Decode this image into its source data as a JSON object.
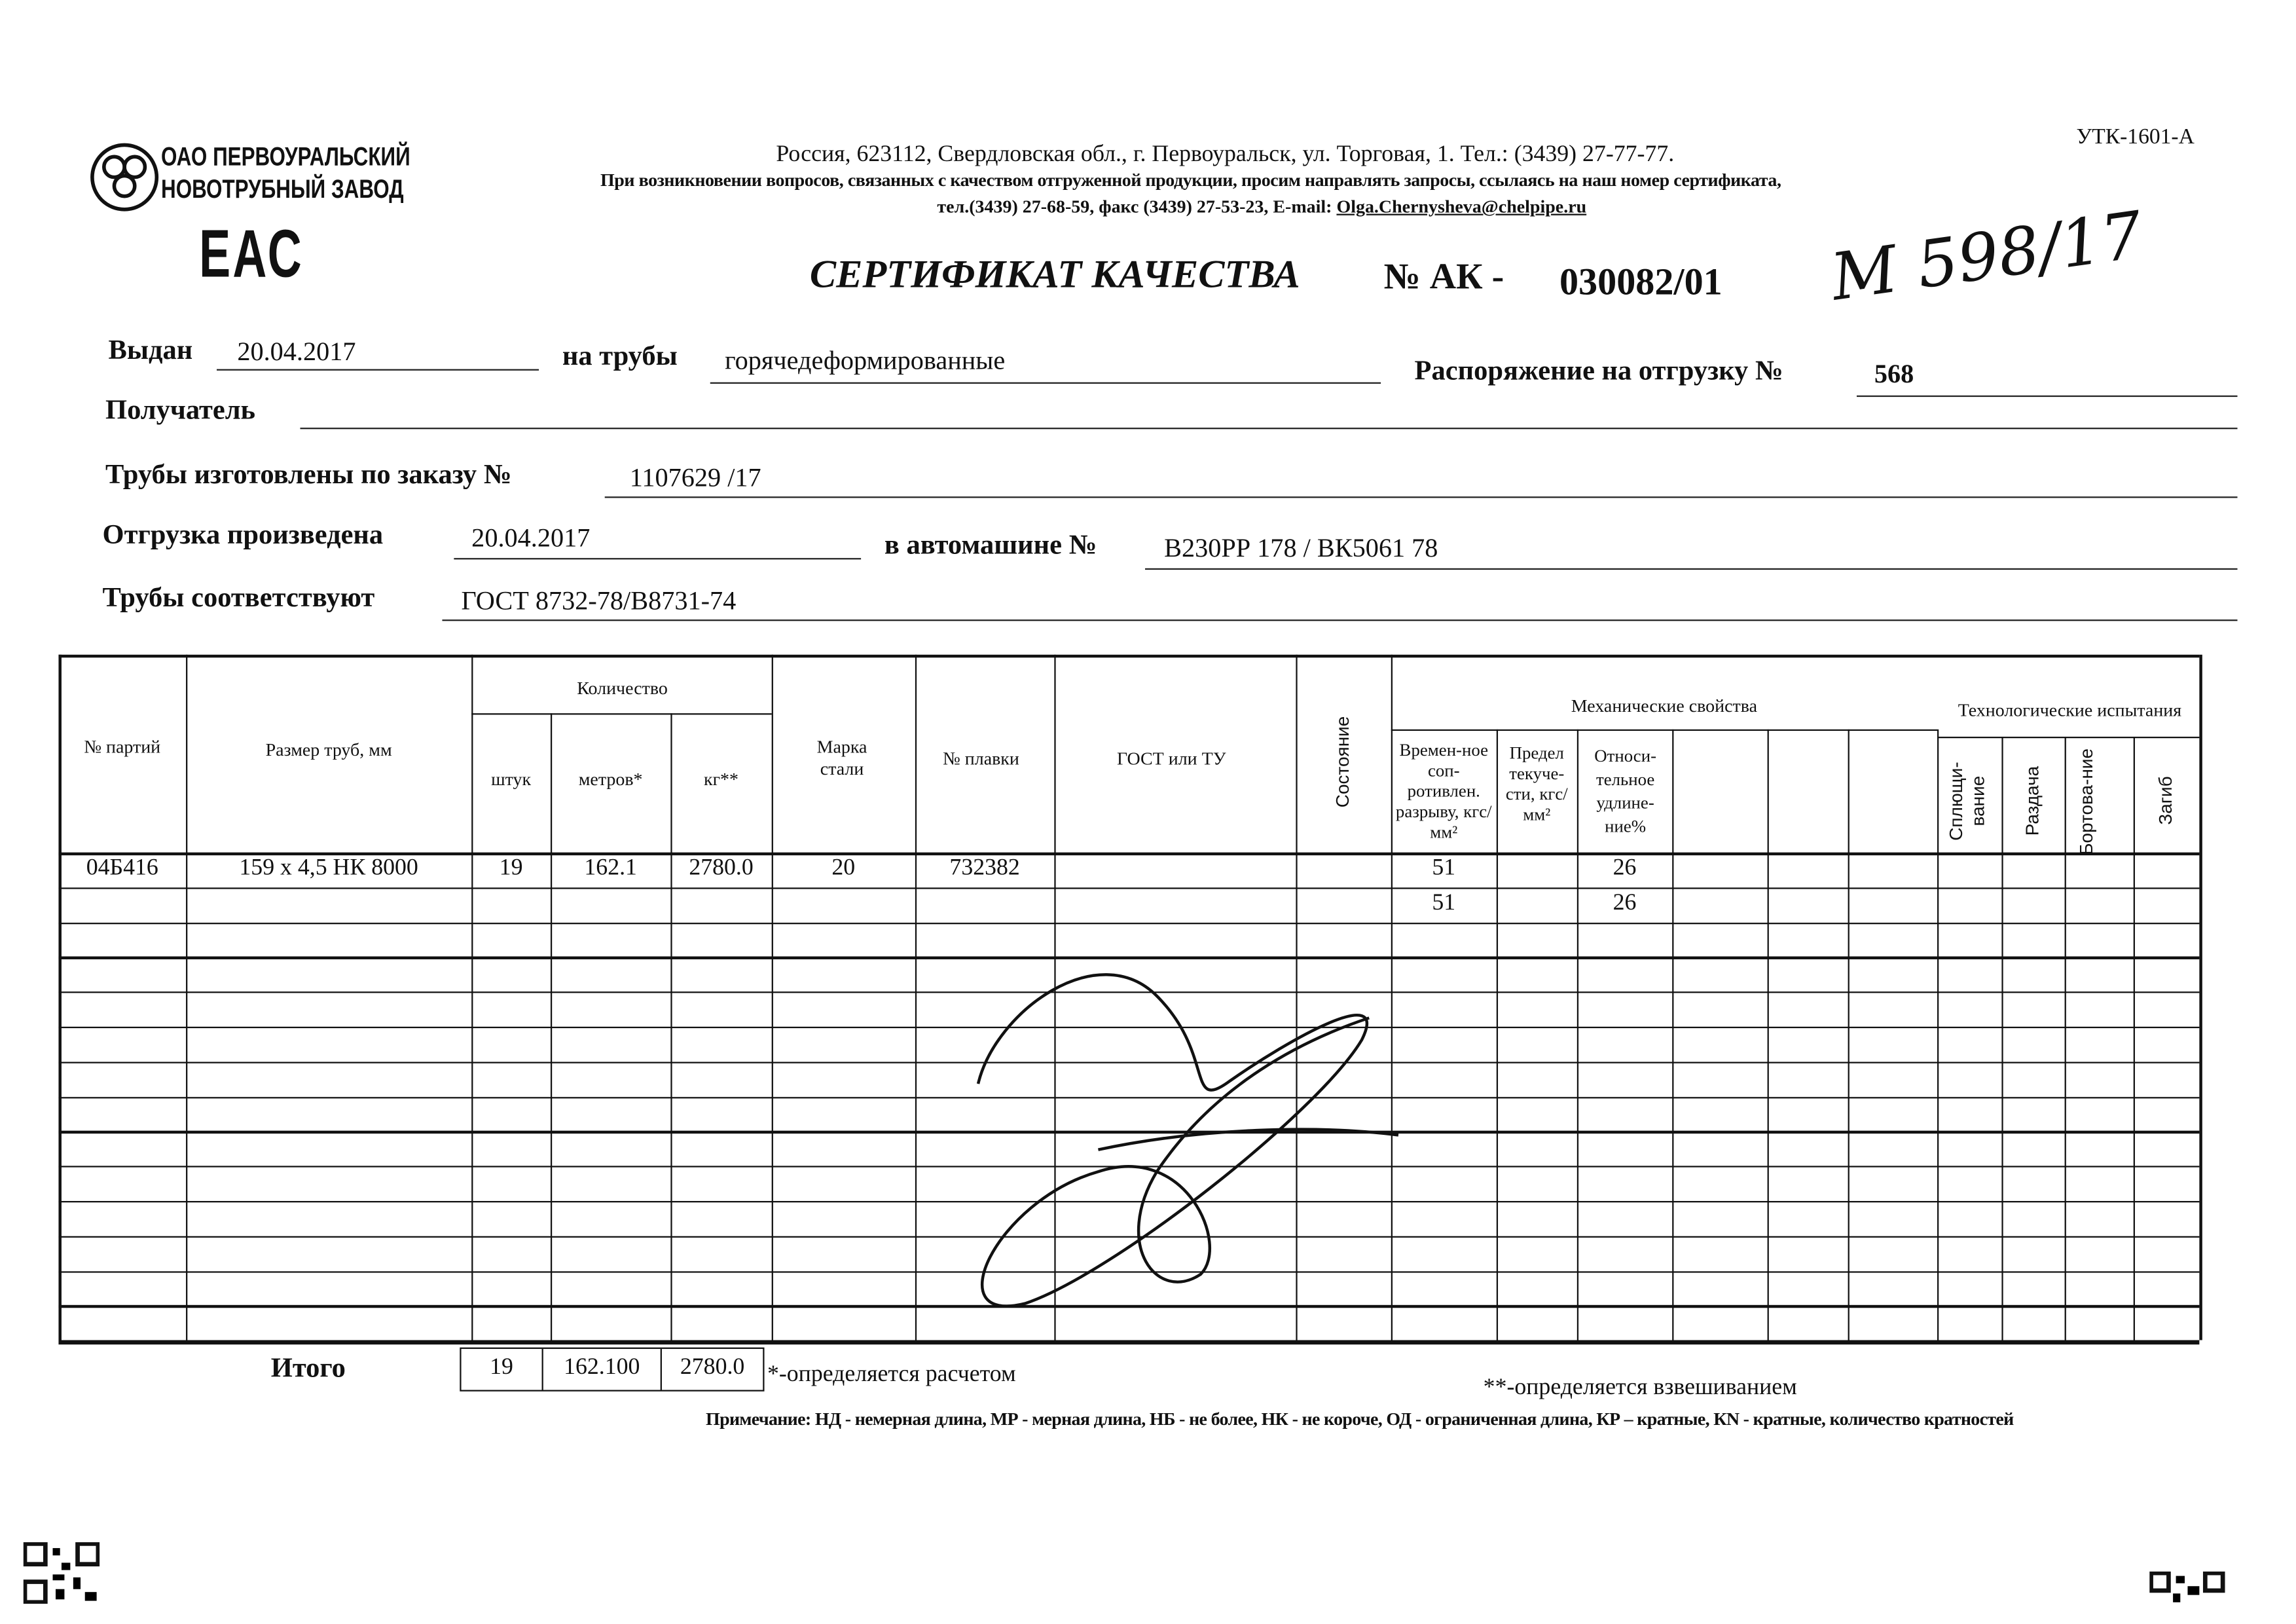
{
  "company": {
    "name_line1": "ОАО ПЕРВОУРАЛЬСКИЙ",
    "name_line2": "НОВОТРУБНЫЙ ЗАВОД",
    "mark": "ЕАС"
  },
  "form_code": "УТК-1601-А",
  "address": "Россия, 623112, Свердловская обл., г. Первоуральск, ул. Торговая, 1. Тел.: (3439) 27-77-77.",
  "contact_note": "При возникновении вопросов, связанных с качеством отгруженной продукции, просим направлять запросы, ссылаясь на наш номер сертификата,",
  "contact_phones": "тел.(3439) 27-68-59, факс (3439) 27-53-23,  E-mail: ",
  "email": "Olga.Chernysheva@chelpipe.ru",
  "title": "СЕРТИФИКАТ КАЧЕСТВА",
  "number_label": "№  АК -",
  "number": "030082/01",
  "handwritten_note": "М 598/17",
  "fields": {
    "issued_label": "Выдан",
    "issued": "20.04.2017",
    "pipes_label": "на трубы",
    "pipes": "горячедеформированные",
    "order_label": "Распоряжение на отгрузку №",
    "order": "568",
    "recipient_label": "Получатель",
    "recipient": "",
    "made_label": "Трубы изготовлены по заказу №",
    "made": "1107629   /17",
    "shipped_label": "Отгрузка произведена",
    "shipped": "20.04.2017",
    "truck_label": "в автомашине №",
    "truck": "В230РР 178 / ВК5061 78",
    "standard_label": "Трубы соответствуют",
    "standard": "ГОСТ 8732-78/В8731-74"
  },
  "table": {
    "headers": {
      "batch": "№ партий",
      "size": "Размер труб, мм",
      "quantity": "Количество",
      "pcs": "штук",
      "meters": "метров*",
      "kg": "кг**",
      "steel": "Марка стали",
      "heat": "№ плавки",
      "gost": "ГОСТ или ТУ",
      "state": "Состояние",
      "mech": "Механические свойства",
      "tensile": "Времен-ное соп-ротивлен. разрыву, кгс/мм²",
      "yield": "Предел текуче-сти, кгс/мм²",
      "elong": "Относи-тельное удлине-ние%",
      "tech": "Технологические испытания",
      "flatten": "Сплющи-вание",
      "expand": "Раздача",
      "flange": "Бортова-ние",
      "bend": "Загиб"
    },
    "rows": [
      {
        "batch": "04Б416",
        "size": "159 х 4,5 НК 8000",
        "pcs": "19",
        "meters": "162.1",
        "kg": "2780.0",
        "steel": "20",
        "heat": "732382",
        "tensile": "51",
        "elong": "26"
      },
      {
        "batch": "",
        "size": "",
        "pcs": "",
        "meters": "",
        "kg": "",
        "steel": "",
        "heat": "",
        "tensile": "51",
        "elong": "26"
      }
    ],
    "total": {
      "label": "Итого",
      "pcs": "19",
      "meters": "162.100",
      "kg": "2780.0"
    }
  },
  "footnote_calc": "*-определяется расчетом",
  "footnote_weigh": "**-определяется взвешиванием",
  "remark": "Примечание: НД - немерная длина, МР - мерная длина, НБ - не более, НК - не короче, ОД - ограниченная длина, КР – кратные, КN - кратные, количество кратностей"
}
